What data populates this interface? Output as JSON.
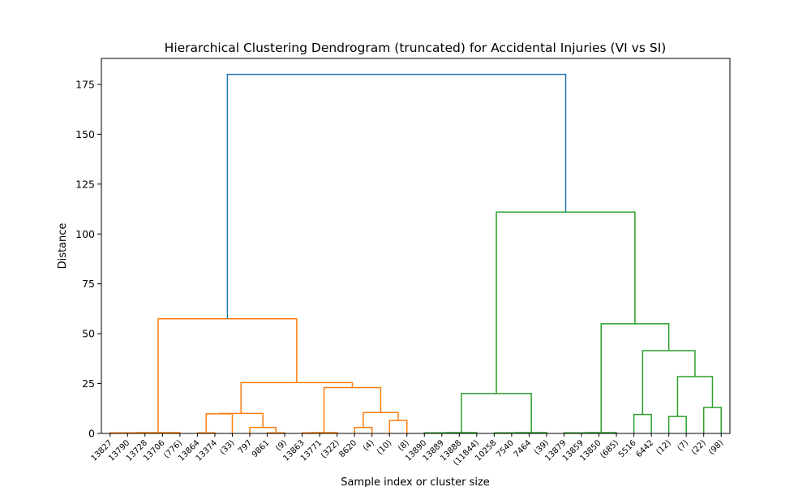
{
  "chart_data": {
    "type": "dendrogram",
    "title": "Hierarchical Clustering Dendrogram (truncated) for Accidental Injuries (VI vs SI)",
    "xlabel": "Sample index or cluster size",
    "ylabel": "Distance",
    "ylim": [
      0,
      188
    ],
    "yticks": [
      0,
      25,
      50,
      75,
      100,
      125,
      150,
      175
    ],
    "leaf_labels": [
      "13827",
      "13790",
      "13728",
      "13706",
      "(776)",
      "13864",
      "13374",
      "(33)",
      "797",
      "9861",
      "(9)",
      "13863",
      "13771",
      "(322)",
      "8620",
      "(4)",
      "(10)",
      "(8)",
      "13890",
      "13889",
      "13888",
      "(11844)",
      "10258",
      "7540",
      "7464",
      "(39)",
      "13879",
      "13859",
      "13850",
      "(685)",
      "5516",
      "6442",
      "(12)",
      "(7)",
      "(22)",
      "(98)"
    ],
    "colors": {
      "cluster_a": "#ff7f0e",
      "cluster_b": "#2ca02c",
      "root": "#1f77b4"
    },
    "links": [
      {
        "left": 0,
        "right": 1,
        "height": 0.3,
        "color": "cluster_a"
      },
      {
        "left": 2,
        "right": 3,
        "height": 0.3,
        "color": "cluster_a"
      },
      {
        "left": 36,
        "right": 37,
        "height": 0.3,
        "color": "cluster_a"
      },
      {
        "left": 38,
        "right": 4,
        "height": 0.4,
        "color": "cluster_a"
      },
      {
        "left": 5,
        "right": 6,
        "height": 0.3,
        "color": "cluster_a"
      },
      {
        "left": 40,
        "right": 7,
        "height": 9.8,
        "color": "cluster_a"
      },
      {
        "left": 9,
        "right": 10,
        "height": 0.3,
        "color": "cluster_a"
      },
      {
        "left": 8,
        "right": 42,
        "height": 3.0,
        "color": "cluster_a"
      },
      {
        "left": 41,
        "right": 43,
        "height": 10.0,
        "color": "cluster_a"
      },
      {
        "left": 11,
        "right": 12,
        "height": 0.3,
        "color": "cluster_a"
      },
      {
        "left": 45,
        "right": 13,
        "height": 0.4,
        "color": "cluster_a"
      },
      {
        "left": 14,
        "right": 15,
        "height": 3.0,
        "color": "cluster_a"
      },
      {
        "left": 16,
        "right": 17,
        "height": 6.5,
        "color": "cluster_a"
      },
      {
        "left": 47,
        "right": 48,
        "height": 10.5,
        "color": "cluster_a"
      },
      {
        "left": 46,
        "right": 49,
        "height": 23.0,
        "color": "cluster_a"
      },
      {
        "left": 44,
        "right": 50,
        "height": 25.5,
        "color": "cluster_a"
      },
      {
        "left": 39,
        "right": 51,
        "height": 57.5,
        "color": "cluster_a"
      },
      {
        "left": 18,
        "right": 19,
        "height": 0.3,
        "color": "cluster_b"
      },
      {
        "left": 53,
        "right": 20,
        "height": 0.3,
        "color": "cluster_b"
      },
      {
        "left": 54,
        "right": 21,
        "height": 0.4,
        "color": "cluster_b"
      },
      {
        "left": 22,
        "right": 23,
        "height": 0.3,
        "color": "cluster_b"
      },
      {
        "left": 56,
        "right": 24,
        "height": 0.3,
        "color": "cluster_b"
      },
      {
        "left": 57,
        "right": 25,
        "height": 0.4,
        "color": "cluster_b"
      },
      {
        "left": 55,
        "right": 58,
        "height": 20.0,
        "color": "cluster_b"
      },
      {
        "left": 26,
        "right": 27,
        "height": 0.3,
        "color": "cluster_b"
      },
      {
        "left": 60,
        "right": 28,
        "height": 0.3,
        "color": "cluster_b"
      },
      {
        "left": 61,
        "right": 29,
        "height": 0.4,
        "color": "cluster_b"
      },
      {
        "left": 30,
        "right": 31,
        "height": 9.5,
        "color": "cluster_b"
      },
      {
        "left": 32,
        "right": 33,
        "height": 8.5,
        "color": "cluster_b"
      },
      {
        "left": 34,
        "right": 35,
        "height": 13.0,
        "color": "cluster_b"
      },
      {
        "left": 64,
        "right": 65,
        "height": 28.5,
        "color": "cluster_b"
      },
      {
        "left": 63,
        "right": 66,
        "height": 41.5,
        "color": "cluster_b"
      },
      {
        "left": 62,
        "right": 67,
        "height": 55.0,
        "color": "cluster_b"
      },
      {
        "left": 59,
        "right": 68,
        "height": 111.0,
        "color": "cluster_b"
      },
      {
        "left": 52,
        "right": 69,
        "height": 180.0,
        "color": "root"
      }
    ]
  }
}
